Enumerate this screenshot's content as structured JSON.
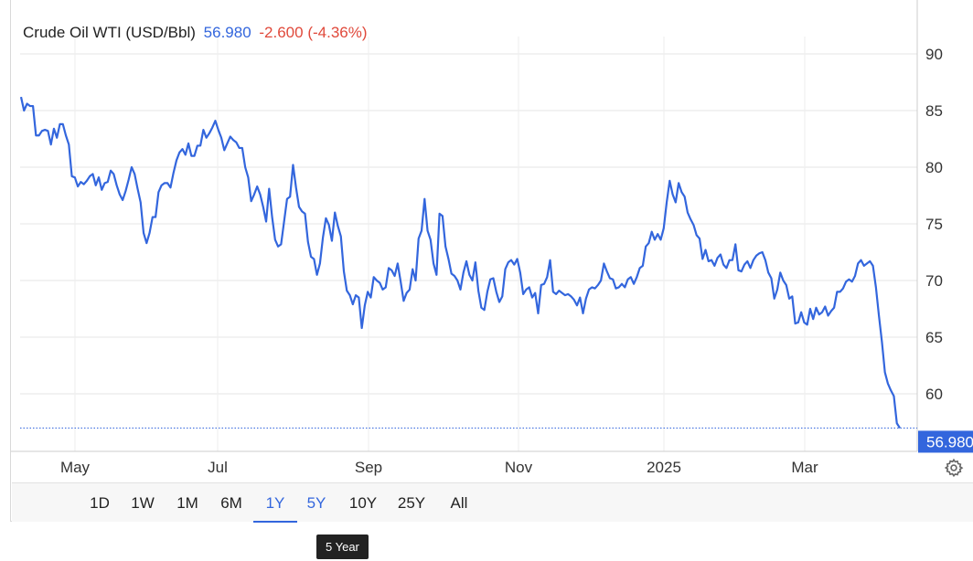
{
  "header": {
    "name": "Crude Oil WTI (USD/Bbl)",
    "price": "56.980",
    "change": "-2.600 (-4.36%)"
  },
  "current_price_tag": "56.980",
  "range_buttons": [
    "1D",
    "1W",
    "1M",
    "6M",
    "1Y",
    "5Y",
    "10Y",
    "25Y",
    "All"
  ],
  "active_range": "1Y",
  "hovered_range": "5Y",
  "tooltip": "5 Year",
  "settings_icon": "gear-icon",
  "colors": {
    "line": "#3366dd",
    "change": "#e0493b",
    "grid": "#e6e6e6"
  },
  "chart_data": {
    "type": "line",
    "title": "Crude Oil WTI (USD/Bbl)",
    "x_tick_labels": [
      "May",
      "Jul",
      "Sep",
      "Nov",
      "2025",
      "Mar"
    ],
    "y_tick_labels": [
      "90",
      "85",
      "80",
      "75",
      "70",
      "65",
      "60"
    ],
    "ylim": [
      57,
      92
    ],
    "grid": true,
    "series": [
      {
        "name": "Crude Oil WTI",
        "values": [
          86.2,
          85.0,
          85.6,
          85.4,
          85.4,
          82.8,
          82.8,
          83.2,
          83.3,
          83.2,
          82.0,
          83.4,
          82.6,
          83.8,
          83.8,
          82.8,
          82.0,
          79.2,
          79.1,
          78.3,
          78.7,
          78.5,
          78.8,
          79.2,
          79.4,
          78.4,
          79.1,
          78.0,
          78.6,
          78.7,
          79.7,
          79.4,
          78.4,
          77.6,
          77.1,
          77.9,
          78.9,
          80.0,
          79.4,
          78.1,
          76.9,
          74.2,
          73.3,
          74.2,
          75.6,
          75.6,
          77.8,
          78.4,
          78.6,
          78.6,
          78.2,
          79.5,
          80.6,
          81.3,
          81.6,
          81.1,
          82.1,
          81.0,
          81.0,
          81.9,
          81.9,
          83.3,
          82.6,
          83.0,
          83.5,
          84.1,
          83.3,
          82.6,
          81.5,
          82.1,
          82.7,
          82.4,
          82.2,
          81.7,
          81.7,
          80.0,
          79.1,
          77.0,
          77.6,
          78.3,
          77.6,
          76.5,
          75.2,
          78.1,
          75.6,
          73.6,
          73.0,
          73.2,
          75.2,
          77.2,
          77.4,
          80.2,
          78.2,
          76.5,
          76.1,
          75.9,
          73.4,
          72.1,
          71.9,
          70.5,
          71.5,
          73.8,
          75.5,
          74.9,
          73.5,
          76.0,
          74.8,
          73.9,
          70.8,
          69.1,
          68.7,
          67.9,
          68.7,
          68.5,
          65.8,
          67.8,
          69.0,
          68.5,
          70.3,
          70.0,
          69.8,
          69.2,
          69.4,
          71.1,
          70.9,
          70.4,
          71.5,
          69.9,
          68.2,
          68.9,
          69.2,
          71.0,
          70.0,
          73.7,
          74.4,
          77.2,
          74.4,
          73.6,
          71.5,
          70.5,
          75.9,
          75.7,
          73.0,
          71.9,
          70.6,
          70.4,
          70.0,
          69.2,
          70.7,
          71.7,
          70.5,
          70.0,
          71.6,
          69.1,
          67.6,
          67.4,
          69.0,
          70.1,
          70.2,
          69.0,
          68.1,
          68.6,
          71.0,
          71.6,
          71.8,
          71.4,
          71.9,
          70.7,
          68.8,
          69.2,
          69.4,
          68.5,
          68.9,
          67.1,
          69.6,
          69.7,
          70.3,
          71.8,
          69.0,
          68.8,
          69.1,
          68.9,
          68.7,
          68.8,
          68.6,
          68.3,
          67.8,
          68.5,
          67.1,
          68.4,
          69.2,
          69.4,
          69.3,
          69.6,
          70.0,
          71.5,
          70.8,
          70.2,
          70.1,
          69.3,
          69.4,
          69.7,
          69.4,
          70.1,
          70.3,
          69.7,
          70.3,
          71.1,
          71.3,
          73.0,
          73.3,
          74.3,
          73.6,
          74.1,
          73.6,
          74.6,
          76.9,
          78.8,
          77.6,
          76.9,
          78.6,
          77.8,
          77.4,
          76.0,
          75.4,
          74.9,
          74.0,
          73.7,
          71.9,
          72.7,
          71.7,
          71.8,
          71.3,
          72.0,
          72.3,
          71.4,
          71.1,
          71.8,
          71.8,
          73.2,
          70.9,
          70.8,
          71.4,
          71.7,
          71.1,
          71.8,
          72.2,
          72.4,
          72.5,
          71.8,
          70.7,
          70.2,
          68.4,
          69.2,
          70.7,
          70.0,
          69.6,
          68.4,
          68.6,
          66.2,
          66.3,
          67.2,
          66.3,
          66.1,
          67.5,
          66.6,
          67.6,
          67.0,
          67.2,
          67.7,
          66.9,
          67.3,
          67.6,
          69.0,
          69.0,
          69.3,
          69.9,
          70.1,
          69.9,
          70.4,
          71.5,
          71.8,
          71.3,
          71.5,
          71.7,
          71.3,
          69.4,
          66.9,
          64.6,
          61.9,
          60.9,
          60.3,
          59.8,
          57.4,
          56.98
        ]
      }
    ],
    "last_value": 56.98
  }
}
